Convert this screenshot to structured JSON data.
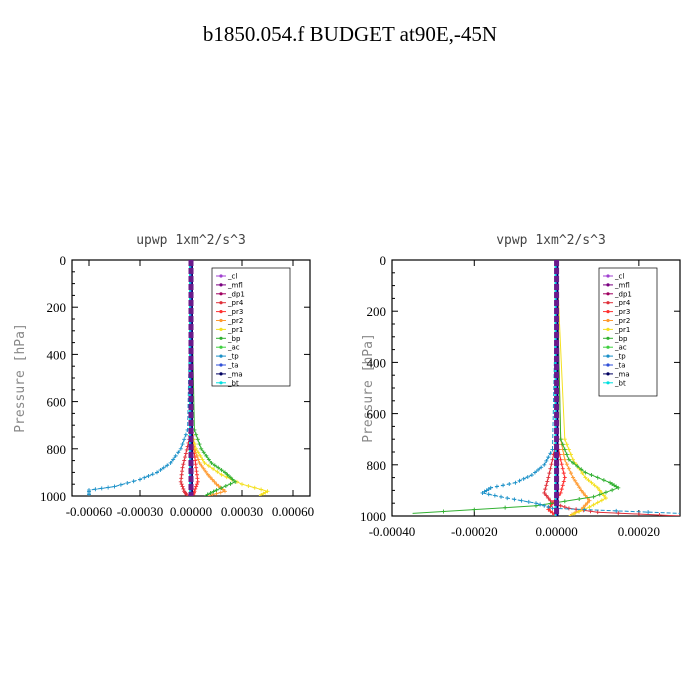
{
  "title": "b1850.054.f  BUDGET at90E,-45N",
  "legend": [
    {
      "label": "_cl",
      "color": "#a040d0"
    },
    {
      "label": "_mfl",
      "color": "#7a0080"
    },
    {
      "label": "_dp1",
      "color": "#a00060"
    },
    {
      "label": "_pr4",
      "color": "#e0303a"
    },
    {
      "label": "_pr3",
      "color": "#ff3030"
    },
    {
      "label": "_pr2",
      "color": "#ff9a30"
    },
    {
      "label": "_pr1",
      "color": "#f4e020"
    },
    {
      "label": "_bp",
      "color": "#30b030"
    },
    {
      "label": "_ac",
      "color": "#40d040"
    },
    {
      "label": "_tp",
      "color": "#1a90c8"
    },
    {
      "label": "_ta",
      "color": "#3050d8"
    },
    {
      "label": "_ma",
      "color": "#000060"
    },
    {
      "label": "_bt",
      "color": "#00e0e0"
    }
  ],
  "chart_data": [
    {
      "type": "line",
      "title": "upwp   1xm^2/s^3",
      "xlabel": "",
      "ylabel": "Pressure [hPa]",
      "xlim": [
        -0.0007,
        0.0007
      ],
      "ylim": [
        1000,
        0
      ],
      "xticks": [
        -0.0006,
        -0.0003,
        0.0,
        0.0003,
        0.0006
      ],
      "xtick_labels": [
        "-0.00060",
        "-0.00030",
        "0.00000",
        "0.00030",
        "0.00060"
      ],
      "yticks": [
        0,
        200,
        400,
        600,
        800,
        1000
      ],
      "ytick_labels": [
        "0",
        "200",
        "400",
        "600",
        "800",
        "1000"
      ],
      "series": [
        {
          "name": "_cl",
          "x": [
            0,
            0,
            0,
            0,
            0
          ],
          "y": [
            0,
            250,
            500,
            750,
            1000
          ]
        },
        {
          "name": "_mfl",
          "x": [
            0,
            0,
            0,
            0,
            0
          ],
          "y": [
            0,
            250,
            500,
            750,
            1000
          ]
        },
        {
          "name": "_dp1",
          "x": [
            0,
            0,
            0,
            0,
            0
          ],
          "y": [
            0,
            250,
            500,
            750,
            1000
          ]
        },
        {
          "name": "_pr4",
          "x": [
            0,
            0,
            -1e-05,
            -3e-05,
            -5e-05,
            -6e-05,
            -4e-05,
            -2e-05
          ],
          "y": [
            0,
            700,
            760,
            820,
            880,
            940,
            980,
            1000
          ]
        },
        {
          "name": "_pr3",
          "x": [
            0,
            0,
            1e-05,
            2e-05,
            3e-05,
            4e-05,
            2e-05,
            1e-05
          ],
          "y": [
            0,
            700,
            760,
            820,
            880,
            940,
            980,
            1000
          ]
        },
        {
          "name": "_pr2",
          "x": [
            0,
            0,
            2e-05,
            5e-05,
            0.0001,
            0.00015,
            0.0002,
            0.0001
          ],
          "y": [
            0,
            720,
            800,
            860,
            910,
            950,
            980,
            1000
          ]
        },
        {
          "name": "_pr1",
          "x": [
            0,
            0,
            3e-05,
            8e-05,
            0.00018,
            0.0003,
            0.00045,
            0.0004
          ],
          "y": [
            0,
            720,
            800,
            860,
            910,
            950,
            980,
            1000
          ]
        },
        {
          "name": "_bp",
          "x": [
            0,
            2e-05,
            6e-05,
            0.00012,
            0.0002,
            0.00026,
            0.00015,
            8e-05
          ],
          "y": [
            0,
            720,
            800,
            860,
            900,
            940,
            975,
            1000
          ]
        },
        {
          "name": "_ac",
          "x": [
            0,
            0,
            0,
            0,
            0
          ],
          "y": [
            0,
            250,
            500,
            750,
            1000
          ]
        },
        {
          "name": "_tp",
          "x": [
            0,
            -2e-05,
            -6e-05,
            -0.00012,
            -0.0002,
            -0.0003,
            -0.00045,
            -0.0006,
            -0.0006
          ],
          "y": [
            0,
            720,
            800,
            860,
            900,
            930,
            960,
            975,
            1000
          ]
        },
        {
          "name": "_ta",
          "x": [
            0,
            0,
            0,
            0,
            0
          ],
          "y": [
            0,
            250,
            500,
            750,
            1000
          ]
        },
        {
          "name": "_ma",
          "x": [
            0,
            0,
            0,
            0,
            0
          ],
          "y": [
            0,
            250,
            500,
            750,
            1000
          ]
        },
        {
          "name": "_bt",
          "x": [
            0,
            0,
            0,
            0,
            0
          ],
          "y": [
            0,
            250,
            500,
            750,
            1000
          ]
        }
      ]
    },
    {
      "type": "line",
      "title": "vpwp   1xm^2/s^3",
      "xlabel": "",
      "ylabel": "Pressure [hPa]",
      "xlim": [
        -0.0004,
        0.0003
      ],
      "ylim": [
        1000,
        0
      ],
      "xticks": [
        -0.0004,
        -0.0002,
        0.0,
        0.0002
      ],
      "xtick_labels": [
        "-0.00040",
        "-0.00020",
        "0.00000",
        "0.00020"
      ],
      "yticks": [
        0,
        200,
        400,
        600,
        800,
        1000
      ],
      "ytick_labels": [
        "0",
        "200",
        "400",
        "600",
        "800",
        "1000"
      ],
      "series": [
        {
          "name": "_cl",
          "x": [
            0,
            0,
            0,
            0,
            0
          ],
          "y": [
            0,
            250,
            500,
            750,
            1000
          ]
        },
        {
          "name": "_mfl",
          "x": [
            0,
            0,
            0,
            0,
            0
          ],
          "y": [
            0,
            250,
            500,
            750,
            1000
          ]
        },
        {
          "name": "_dp1",
          "x": [
            0,
            0,
            0,
            0,
            0
          ],
          "y": [
            0,
            250,
            500,
            750,
            1000
          ]
        },
        {
          "name": "_pr4",
          "x": [
            0,
            0,
            -1e-05,
            -2e-05,
            -3e-05,
            -1e-05,
            3e-05,
            0.0001,
            0.0003
          ],
          "y": [
            0,
            700,
            780,
            850,
            910,
            950,
            970,
            985,
            1000
          ]
        },
        {
          "name": "_pr3",
          "x": [
            0,
            0,
            1e-05,
            2e-05,
            1e-05,
            -1e-05,
            -2e-05,
            0
          ],
          "y": [
            0,
            700,
            780,
            850,
            910,
            950,
            975,
            1000
          ]
        },
        {
          "name": "_pr2",
          "x": [
            0,
            1e-05,
            2e-05,
            4e-05,
            6e-05,
            8e-05,
            6e-05,
            3e-05
          ],
          "y": [
            0,
            700,
            780,
            850,
            900,
            940,
            975,
            1000
          ]
        },
        {
          "name": "_pr1",
          "x": [
            0,
            2e-05,
            4e-05,
            7e-05,
            0.0001,
            0.00012,
            8e-05,
            3e-05
          ],
          "y": [
            0,
            700,
            780,
            850,
            890,
            930,
            965,
            1000
          ]
        },
        {
          "name": "_bp",
          "x": [
            0,
            1e-05,
            3e-05,
            7e-05,
            0.00013,
            0.00015,
            9e-05,
            -5e-05,
            -0.00035
          ],
          "y": [
            0,
            700,
            780,
            830,
            870,
            890,
            925,
            960,
            990
          ]
        },
        {
          "name": "_ac",
          "x": [
            0,
            0,
            0,
            0,
            0
          ],
          "y": [
            0,
            250,
            500,
            750,
            1000
          ]
        },
        {
          "name": "_tp",
          "x": [
            0,
            -1e-05,
            -3e-05,
            -6e-05,
            -0.0001,
            -0.00016,
            -0.00018,
            -0.00012,
            -5e-05,
            -1e-05,
            0.0003
          ],
          "y": [
            0,
            740,
            800,
            840,
            870,
            890,
            910,
            930,
            950,
            970,
            990
          ]
        },
        {
          "name": "_ta",
          "x": [
            0,
            0,
            0,
            0,
            0
          ],
          "y": [
            0,
            250,
            500,
            750,
            1000
          ]
        },
        {
          "name": "_ma",
          "x": [
            0,
            0,
            0,
            0,
            0
          ],
          "y": [
            0,
            250,
            500,
            750,
            1000
          ]
        },
        {
          "name": "_bt",
          "x": [
            0,
            0,
            0,
            0,
            0
          ],
          "y": [
            0,
            250,
            500,
            750,
            1000
          ]
        }
      ]
    }
  ]
}
